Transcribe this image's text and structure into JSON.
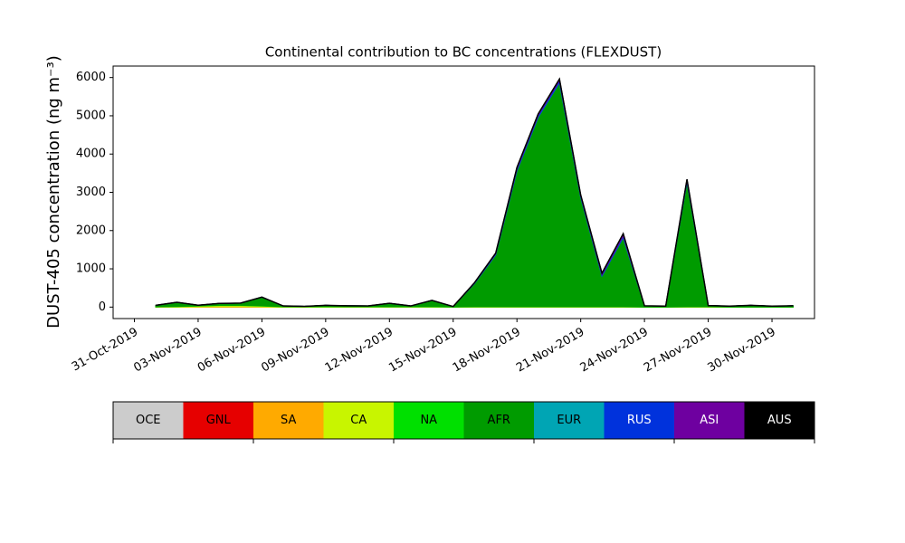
{
  "chart_data": {
    "type": "area",
    "title": "Continental contribution to BC concentrations (FLEXDUST)",
    "y_label": "DUST-405 concentration (ng m⁻³)",
    "stacked": true,
    "x": [
      "01-Nov-2019",
      "02-Nov-2019",
      "03-Nov-2019",
      "04-Nov-2019",
      "05-Nov-2019",
      "06-Nov-2019",
      "07-Nov-2019",
      "08-Nov-2019",
      "09-Nov-2019",
      "10-Nov-2019",
      "11-Nov-2019",
      "12-Nov-2019",
      "13-Nov-2019",
      "14-Nov-2019",
      "15-Nov-2019",
      "16-Nov-2019",
      "17-Nov-2019",
      "18-Nov-2019",
      "19-Nov-2019",
      "20-Nov-2019",
      "21-Nov-2019",
      "22-Nov-2019",
      "23-Nov-2019",
      "24-Nov-2019",
      "25-Nov-2019",
      "26-Nov-2019",
      "27-Nov-2019",
      "28-Nov-2019",
      "29-Nov-2019",
      "30-Nov-2019",
      "01-Dec-2019"
    ],
    "series": [
      {
        "name": "OCE",
        "color": "#cccccc",
        "values": [
          0,
          0,
          0,
          0,
          0,
          0,
          0,
          0,
          0,
          0,
          0,
          0,
          0,
          0,
          0,
          0,
          0,
          0,
          0,
          0,
          0,
          0,
          0,
          0,
          0,
          0,
          0,
          0,
          0,
          0,
          0
        ]
      },
      {
        "name": "GNL",
        "color": "#e60000",
        "values": [
          0,
          0,
          0,
          0,
          0,
          0,
          0,
          0,
          0,
          0,
          0,
          0,
          0,
          0,
          0,
          0,
          0,
          0,
          0,
          0,
          0,
          0,
          0,
          0,
          0,
          0,
          0,
          0,
          0,
          0,
          0
        ]
      },
      {
        "name": "SA",
        "color": "#ffaa00",
        "values": [
          0,
          0,
          5,
          10,
          10,
          5,
          0,
          0,
          0,
          0,
          0,
          0,
          0,
          0,
          0,
          0,
          0,
          0,
          0,
          0,
          0,
          0,
          0,
          0,
          0,
          0,
          0,
          0,
          0,
          0,
          0
        ]
      },
      {
        "name": "CA",
        "color": "#c8f500",
        "values": [
          5,
          10,
          20,
          30,
          30,
          20,
          5,
          5,
          5,
          5,
          5,
          5,
          5,
          5,
          0,
          5,
          5,
          5,
          5,
          5,
          5,
          5,
          5,
          0,
          0,
          5,
          5,
          0,
          0,
          0,
          0
        ]
      },
      {
        "name": "NA",
        "color": "#00e000",
        "values": [
          0,
          5,
          5,
          5,
          5,
          10,
          5,
          5,
          10,
          5,
          5,
          5,
          5,
          10,
          5,
          5,
          5,
          5,
          5,
          5,
          5,
          5,
          5,
          5,
          5,
          5,
          5,
          5,
          5,
          5,
          5
        ]
      },
      {
        "name": "AFR",
        "color": "#009b00",
        "values": [
          40,
          110,
          20,
          50,
          60,
          220,
          20,
          10,
          30,
          25,
          20,
          90,
          20,
          160,
          10,
          600,
          1350,
          3550,
          4950,
          5850,
          2850,
          800,
          1800,
          30,
          20,
          3250,
          30,
          20,
          40,
          20,
          30
        ]
      },
      {
        "name": "EUR",
        "color": "#00a5b4",
        "values": [
          0,
          0,
          0,
          0,
          0,
          5,
          0,
          0,
          0,
          0,
          0,
          0,
          0,
          0,
          0,
          5,
          10,
          10,
          10,
          10,
          10,
          5,
          10,
          0,
          0,
          10,
          0,
          0,
          0,
          0,
          0
        ]
      },
      {
        "name": "RUS",
        "color": "#0032dc",
        "values": [
          0,
          0,
          0,
          0,
          0,
          0,
          0,
          0,
          0,
          0,
          0,
          0,
          0,
          0,
          0,
          10,
          20,
          40,
          40,
          50,
          30,
          30,
          40,
          0,
          0,
          40,
          0,
          0,
          0,
          0,
          0
        ]
      },
      {
        "name": "ASI",
        "color": "#6e00a0",
        "values": [
          0,
          0,
          0,
          0,
          0,
          0,
          0,
          0,
          0,
          0,
          0,
          0,
          0,
          0,
          0,
          10,
          20,
          40,
          40,
          40,
          30,
          40,
          60,
          0,
          0,
          30,
          0,
          0,
          0,
          0,
          0
        ]
      },
      {
        "name": "AUS",
        "color": "#000000",
        "values": [
          0,
          0,
          0,
          0,
          0,
          0,
          0,
          0,
          0,
          0,
          0,
          0,
          0,
          0,
          0,
          0,
          0,
          0,
          0,
          0,
          0,
          0,
          0,
          0,
          0,
          0,
          0,
          0,
          0,
          0,
          0
        ]
      }
    ],
    "xlim": [
      "30-Oct-2019",
      "02-Dec-2019"
    ],
    "xticks": [
      "31-Oct-2019",
      "03-Nov-2019",
      "06-Nov-2019",
      "09-Nov-2019",
      "12-Nov-2019",
      "15-Nov-2019",
      "18-Nov-2019",
      "21-Nov-2019",
      "24-Nov-2019",
      "27-Nov-2019",
      "30-Nov-2019"
    ],
    "ylim": [
      -300,
      6300
    ],
    "yticks": [
      0,
      1000,
      2000,
      3000,
      4000,
      5000,
      6000
    ],
    "grid": false,
    "legend": "bottom"
  }
}
